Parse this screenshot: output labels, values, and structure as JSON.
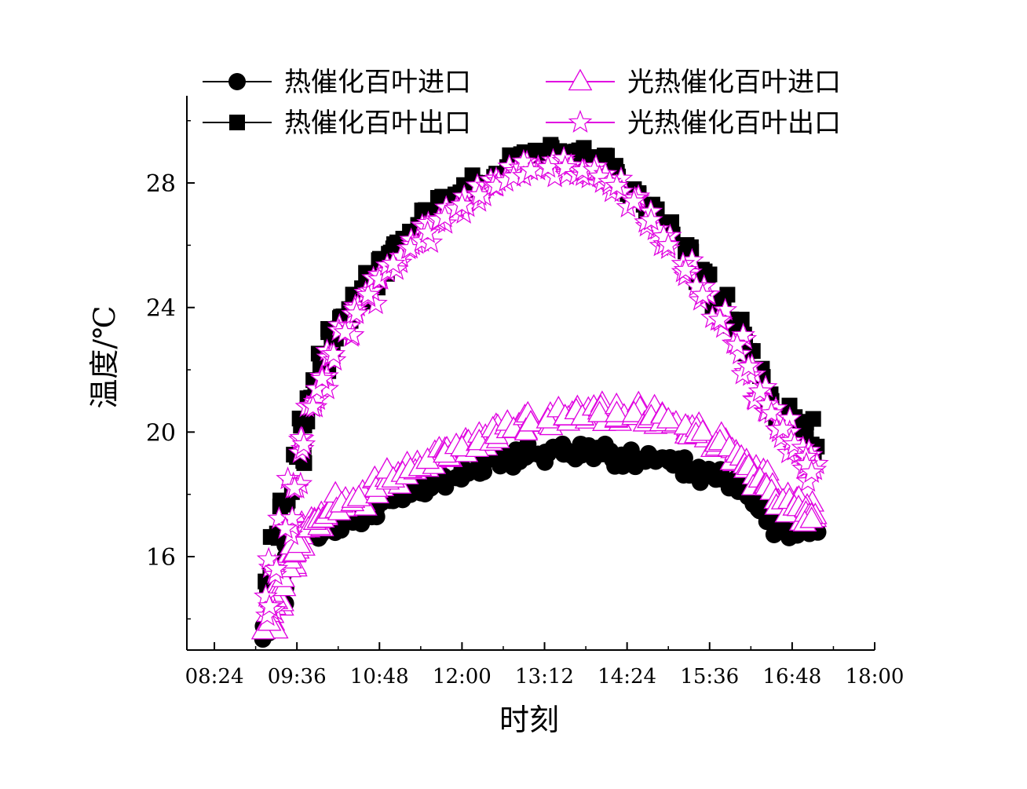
{
  "chart_data": {
    "type": "scatter",
    "xlabel": "时刻",
    "ylabel": "温度/℃",
    "x_ticks": [
      "08:24",
      "09:36",
      "10:48",
      "12:00",
      "13:12",
      "14:24",
      "15:36",
      "16:48",
      "18:00"
    ],
    "y_ticks": [
      16,
      20,
      24,
      28
    ],
    "xlim": [
      "08:00",
      "18:00"
    ],
    "ylim": [
      13,
      30.8
    ],
    "legend_position": "top",
    "series": [
      {
        "name": "热催化百叶进口",
        "marker": "circle-filled",
        "color": "#000000",
        "points": [
          [
            "09:12",
            13.6
          ],
          [
            "09:16",
            14.3
          ],
          [
            "09:20",
            14.8
          ],
          [
            "09:24",
            15.4
          ],
          [
            "09:28",
            15.9
          ],
          [
            "09:32",
            16.3
          ],
          [
            "09:40",
            16.6
          ],
          [
            "09:50",
            16.9
          ],
          [
            "10:00",
            17.0
          ],
          [
            "10:15",
            17.1
          ],
          [
            "10:30",
            17.3
          ],
          [
            "10:45",
            17.5
          ],
          [
            "11:00",
            17.8
          ],
          [
            "11:15",
            18.0
          ],
          [
            "11:30",
            18.3
          ],
          [
            "11:45",
            18.5
          ],
          [
            "12:00",
            18.8
          ],
          [
            "12:15",
            19.0
          ],
          [
            "12:30",
            19.1
          ],
          [
            "12:45",
            19.2
          ],
          [
            "13:00",
            19.3
          ],
          [
            "13:15",
            19.3
          ],
          [
            "13:30",
            19.3
          ],
          [
            "13:45",
            19.3
          ],
          [
            "14:00",
            19.3
          ],
          [
            "14:15",
            19.2
          ],
          [
            "14:30",
            19.2
          ],
          [
            "14:45",
            19.2
          ],
          [
            "15:00",
            19.1
          ],
          [
            "15:15",
            18.9
          ],
          [
            "15:30",
            18.7
          ],
          [
            "15:45",
            18.5
          ],
          [
            "16:00",
            18.2
          ],
          [
            "16:15",
            17.8
          ],
          [
            "16:25",
            17.4
          ],
          [
            "16:35",
            17.0
          ],
          [
            "16:45",
            16.9
          ],
          [
            "16:55",
            16.9
          ],
          [
            "17:05",
            16.9
          ]
        ]
      },
      {
        "name": "热催化百叶出口",
        "marker": "square-filled",
        "color": "#000000",
        "points": [
          [
            "09:14",
            15.2
          ],
          [
            "09:20",
            16.6
          ],
          [
            "09:28",
            17.8
          ],
          [
            "09:36",
            19.2
          ],
          [
            "09:44",
            20.4
          ],
          [
            "09:52",
            21.4
          ],
          [
            "10:00",
            22.2
          ],
          [
            "10:10",
            23.0
          ],
          [
            "10:20",
            23.7
          ],
          [
            "10:30",
            24.3
          ],
          [
            "10:40",
            24.9
          ],
          [
            "10:50",
            25.4
          ],
          [
            "11:00",
            25.9
          ],
          [
            "11:15",
            26.4
          ],
          [
            "11:30",
            26.9
          ],
          [
            "11:45",
            27.3
          ],
          [
            "12:00",
            27.7
          ],
          [
            "12:15",
            28.0
          ],
          [
            "12:30",
            28.3
          ],
          [
            "12:45",
            28.6
          ],
          [
            "13:00",
            28.8
          ],
          [
            "13:15",
            28.9
          ],
          [
            "13:30",
            28.9
          ],
          [
            "13:45",
            28.8
          ],
          [
            "14:00",
            28.6
          ],
          [
            "14:15",
            28.3
          ],
          [
            "14:30",
            27.8
          ],
          [
            "14:45",
            27.2
          ],
          [
            "15:00",
            26.5
          ],
          [
            "15:15",
            25.8
          ],
          [
            "15:30",
            25.0
          ],
          [
            "15:45",
            24.2
          ],
          [
            "16:00",
            23.3
          ],
          [
            "16:10",
            22.6
          ],
          [
            "16:20",
            21.8
          ],
          [
            "16:30",
            21.0
          ],
          [
            "16:40",
            20.6
          ],
          [
            "16:50",
            20.3
          ],
          [
            "17:00",
            20.1
          ],
          [
            "17:05",
            19.6
          ]
        ]
      },
      {
        "name": "光热催化百叶进口",
        "marker": "triangle-open",
        "color": "#e000e0",
        "points": [
          [
            "09:12",
            13.9
          ],
          [
            "09:18",
            14.6
          ],
          [
            "09:24",
            15.3
          ],
          [
            "09:30",
            15.9
          ],
          [
            "09:38",
            16.4
          ],
          [
            "09:46",
            16.9
          ],
          [
            "09:55",
            17.2
          ],
          [
            "10:05",
            17.5
          ],
          [
            "10:15",
            17.7
          ],
          [
            "10:30",
            17.9
          ],
          [
            "10:45",
            18.2
          ],
          [
            "11:00",
            18.5
          ],
          [
            "11:15",
            18.8
          ],
          [
            "11:30",
            19.1
          ],
          [
            "11:45",
            19.3
          ],
          [
            "12:00",
            19.5
          ],
          [
            "12:15",
            19.7
          ],
          [
            "12:30",
            19.9
          ],
          [
            "12:45",
            20.1
          ],
          [
            "13:00",
            20.3
          ],
          [
            "13:15",
            20.4
          ],
          [
            "13:30",
            20.5
          ],
          [
            "13:45",
            20.5
          ],
          [
            "14:00",
            20.6
          ],
          [
            "14:15",
            20.6
          ],
          [
            "14:30",
            20.6
          ],
          [
            "14:45",
            20.5
          ],
          [
            "15:00",
            20.4
          ],
          [
            "15:15",
            20.2
          ],
          [
            "15:30",
            20.0
          ],
          [
            "15:45",
            19.7
          ],
          [
            "16:00",
            19.3
          ],
          [
            "16:10",
            18.9
          ],
          [
            "16:20",
            18.5
          ],
          [
            "16:30",
            18.1
          ],
          [
            "16:40",
            17.8
          ],
          [
            "16:50",
            17.6
          ],
          [
            "17:00",
            17.4
          ],
          [
            "17:05",
            17.2
          ]
        ]
      },
      {
        "name": "光热催化百叶出口",
        "marker": "star-open",
        "color": "#e000e0",
        "points": [
          [
            "09:12",
            14.4
          ],
          [
            "09:18",
            15.6
          ],
          [
            "09:26",
            16.9
          ],
          [
            "09:34",
            18.2
          ],
          [
            "09:42",
            19.6
          ],
          [
            "09:50",
            20.8
          ],
          [
            "09:58",
            21.7
          ],
          [
            "10:08",
            22.5
          ],
          [
            "10:18",
            23.2
          ],
          [
            "10:28",
            23.8
          ],
          [
            "10:38",
            24.4
          ],
          [
            "10:48",
            24.9
          ],
          [
            "11:00",
            25.4
          ],
          [
            "11:15",
            25.9
          ],
          [
            "11:30",
            26.4
          ],
          [
            "11:45",
            26.9
          ],
          [
            "12:00",
            27.3
          ],
          [
            "12:15",
            27.6
          ],
          [
            "12:30",
            27.9
          ],
          [
            "12:45",
            28.2
          ],
          [
            "13:00",
            28.4
          ],
          [
            "13:15",
            28.5
          ],
          [
            "13:30",
            28.5
          ],
          [
            "13:45",
            28.4
          ],
          [
            "14:00",
            28.2
          ],
          [
            "14:15",
            27.9
          ],
          [
            "14:30",
            27.4
          ],
          [
            "14:45",
            26.8
          ],
          [
            "15:00",
            26.0
          ],
          [
            "15:15",
            25.2
          ],
          [
            "15:30",
            24.4
          ],
          [
            "15:45",
            23.6
          ],
          [
            "16:00",
            22.8
          ],
          [
            "16:10",
            22.1
          ],
          [
            "16:20",
            21.3
          ],
          [
            "16:30",
            20.6
          ],
          [
            "16:40",
            20.1
          ],
          [
            "16:50",
            19.6
          ],
          [
            "17:00",
            19.2
          ],
          [
            "17:05",
            18.7
          ]
        ]
      }
    ]
  }
}
